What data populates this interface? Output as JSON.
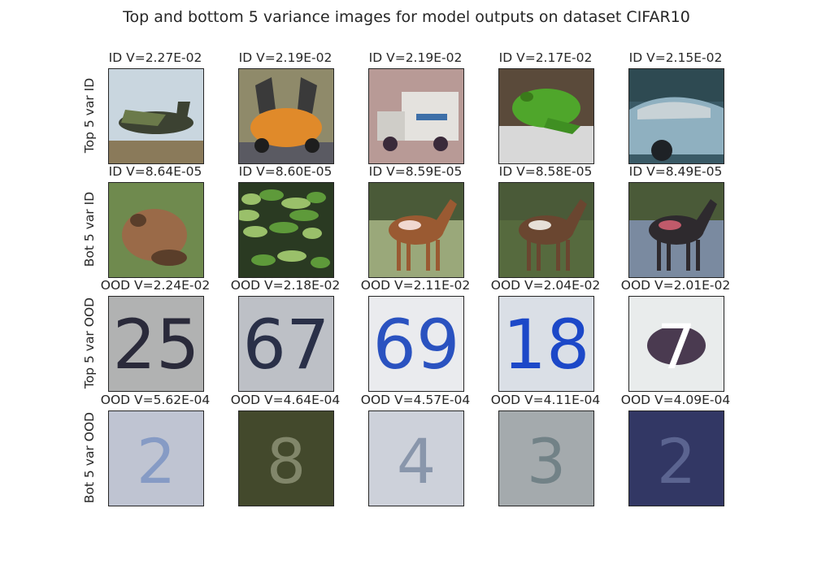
{
  "title": "Top and bottom 5 variance images for model outputs on dataset CIFAR10",
  "rows": [
    {
      "label": "Top 5 var ID",
      "cells": [
        {
          "caption": "ID V=2.27E-02",
          "icon": "airplane-photo",
          "colors": {
            "bg": "#c9d6df",
            "fg": "#3c4232",
            "accent": "#6b7a4a"
          }
        },
        {
          "caption": "ID V=2.19E-02",
          "icon": "orange-sports-car-photo",
          "colors": {
            "bg": "#8f8a6a",
            "fg": "#e08a2a",
            "accent": "#3a3a3a"
          }
        },
        {
          "caption": "ID V=2.19E-02",
          "icon": "truck-photo",
          "colors": {
            "bg": "#b89a96",
            "fg": "#e4e2de",
            "accent": "#3d6fa8"
          }
        },
        {
          "caption": "ID V=2.17E-02",
          "icon": "green-frog-photo",
          "colors": {
            "bg": "#5a4a3a",
            "fg": "#4fa62b",
            "accent": "#d8d8d8"
          }
        },
        {
          "caption": "ID V=2.15E-02",
          "icon": "blue-car-photo",
          "colors": {
            "bg": "#3a5a66",
            "fg": "#8fb0c0",
            "accent": "#c8d2d6"
          }
        }
      ]
    },
    {
      "label": "Bot 5 var ID",
      "cells": [
        {
          "caption": "ID V=8.64E-05",
          "icon": "brown-frog-photo",
          "colors": {
            "bg": "#6f8a4e",
            "fg": "#9a6a48",
            "accent": "#5a3e2a"
          }
        },
        {
          "caption": "ID V=8.60E-05",
          "icon": "camouflaged-frog-photo",
          "colors": {
            "bg": "#2a3a22",
            "fg": "#5e9a3a",
            "accent": "#9ac06a"
          }
        },
        {
          "caption": "ID V=8.59E-05",
          "icon": "horse-photo",
          "colors": {
            "bg": "#9aa87a",
            "fg": "#9a5a32",
            "accent": "#f0d8d0"
          }
        },
        {
          "caption": "ID V=8.58E-05",
          "icon": "horse-photo",
          "colors": {
            "bg": "#566a3e",
            "fg": "#6a4630",
            "accent": "#e6e0d8"
          }
        },
        {
          "caption": "ID V=8.49E-05",
          "icon": "horse-photo",
          "colors": {
            "bg": "#7a8aa0",
            "fg": "#2e2a2e",
            "accent": "#c05a6a"
          }
        }
      ]
    },
    {
      "label": "Top 5 var OOD",
      "cells": [
        {
          "caption": "OOD V=2.24E-02",
          "icon": "house-number-photo",
          "digits": "25",
          "colors": {
            "bg": "#c6c8c8",
            "fg": "#2a2a3a",
            "accent": "#8a8a8a"
          }
        },
        {
          "caption": "OOD V=2.18E-02",
          "icon": "house-number-photo",
          "digits": "67",
          "colors": {
            "bg": "#cfd3d6",
            "fg": "#2a3048",
            "accent": "#9a9ea8"
          }
        },
        {
          "caption": "OOD V=2.11E-02",
          "icon": "house-number-photo",
          "digits": "69",
          "colors": {
            "bg": "#f4f4f6",
            "fg": "#2a52c0",
            "accent": "#d8dae0"
          }
        },
        {
          "caption": "OOD V=2.04E-02",
          "icon": "house-number-photo",
          "digits": "18",
          "colors": {
            "bg": "#e6eaee",
            "fg": "#1c48c8",
            "accent": "#c4ccd8"
          }
        },
        {
          "caption": "OOD V=2.01E-02",
          "icon": "house-number-photo",
          "digits": "7",
          "colors": {
            "bg": "#dde2e2",
            "fg": "#4a3a50",
            "accent": "#ffffff"
          }
        }
      ]
    },
    {
      "label": "Bot 5 var OOD",
      "cells": [
        {
          "caption": "OOD V=5.62E-04",
          "icon": "blurry-house-number-photo",
          "digits": "2",
          "colors": {
            "bg": "#c8ccd8",
            "fg": "#2a5ab0",
            "accent": "#a0a8c0"
          }
        },
        {
          "caption": "OOD V=4.64E-04",
          "icon": "blurry-house-number-photo",
          "digits": "8",
          "colors": {
            "bg": "#4a5030",
            "fg": "#e0e4c8",
            "accent": "#2a3020"
          }
        },
        {
          "caption": "OOD V=4.57E-04",
          "icon": "blurry-house-number-photo",
          "digits": "4",
          "colors": {
            "bg": "#d4d8e0",
            "fg": "#1e3a60",
            "accent": "#b8bcc8"
          }
        },
        {
          "caption": "OOD V=4.11E-04",
          "icon": "blurry-house-number-photo",
          "digits": "3",
          "colors": {
            "bg": "#9aa0a4",
            "fg": "#2a4a52",
            "accent": "#c8ccd0"
          }
        },
        {
          "caption": "OOD V=4.09E-04",
          "icon": "blurry-house-number-photo",
          "digits": "2",
          "colors": {
            "bg": "#3a4070",
            "fg": "#9aa8d0",
            "accent": "#1a1e40"
          }
        }
      ]
    }
  ]
}
